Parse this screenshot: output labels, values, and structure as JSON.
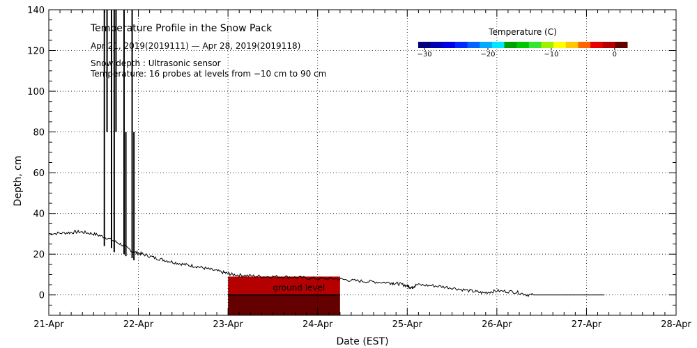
{
  "chart_data": {
    "type": "line",
    "title": "Temperature Profile in the Snow Pack",
    "date_range_text": "Apr 21, 2019(2019111) — Apr 28, 2019(2019118)",
    "info_line_1": "Snow depth : Ultrasonic sensor",
    "info_line_2": "Temperature: 16 probes at levels from −10 cm to 90 cm",
    "xlabel": "Date (EST)",
    "ylabel": "Depth, cm",
    "x_ticks": [
      "21-Apr",
      "22-Apr",
      "23-Apr",
      "24-Apr",
      "25-Apr",
      "26-Apr",
      "27-Apr",
      "28-Apr"
    ],
    "y_ticks": [
      "0",
      "20",
      "40",
      "60",
      "80",
      "100",
      "120",
      "140"
    ],
    "xlim_days": [
      0,
      7
    ],
    "ylim": [
      -10,
      140
    ],
    "grid": true,
    "ground_level_label": "ground level",
    "colorbar": {
      "title": "Temperature (C)",
      "tick_labels": [
        "−30",
        "−20",
        "−10",
        "0"
      ],
      "tick_values": [
        -30,
        -20,
        -10,
        0
      ],
      "range": [
        -31,
        2
      ],
      "colors": [
        "#000080",
        "#0000b4",
        "#0000e6",
        "#0028ff",
        "#0064ff",
        "#00aaff",
        "#00e6ff",
        "#00a000",
        "#00c800",
        "#32e632",
        "#a0f000",
        "#ffff00",
        "#ffc800",
        "#ff6400",
        "#e60000",
        "#b40000",
        "#640000"
      ]
    },
    "series": [
      {
        "values": [
          [
            0.0,
            30
          ],
          [
            0.2,
            30.5
          ],
          [
            0.35,
            31
          ],
          [
            0.5,
            30
          ],
          [
            0.65,
            28
          ],
          [
            0.8,
            25
          ],
          [
            0.95,
            21
          ],
          [
            1.05,
            20
          ],
          [
            1.2,
            18
          ],
          [
            1.35,
            16.5
          ],
          [
            1.5,
            15
          ],
          [
            1.65,
            14
          ],
          [
            1.8,
            12.5
          ],
          [
            1.95,
            11
          ],
          [
            2.05,
            10
          ],
          [
            2.2,
            9.5
          ],
          [
            2.4,
            9
          ],
          [
            2.6,
            9
          ],
          [
            2.8,
            8.5
          ],
          [
            3.0,
            8
          ],
          [
            3.2,
            8
          ],
          [
            3.4,
            7
          ],
          [
            3.6,
            6.5
          ],
          [
            3.8,
            6
          ],
          [
            3.9,
            5.5
          ],
          [
            4.0,
            4.5
          ],
          [
            4.05,
            3.5
          ],
          [
            4.1,
            5
          ],
          [
            4.3,
            4.5
          ],
          [
            4.5,
            3.5
          ],
          [
            4.7,
            2
          ],
          [
            4.85,
            1
          ],
          [
            5.0,
            2
          ],
          [
            5.2,
            1.5
          ],
          [
            5.35,
            0
          ],
          [
            5.5,
            0
          ],
          [
            6.0,
            0
          ],
          [
            6.2,
            0
          ]
        ]
      }
    ],
    "spikes": [
      {
        "x": 0.62,
        "top": 140,
        "bottom": 24
      },
      {
        "x": 0.65,
        "top": 140,
        "bottom": 80
      },
      {
        "x": 0.7,
        "top": 140,
        "bottom": 23
      },
      {
        "x": 0.73,
        "top": 140,
        "bottom": 21
      },
      {
        "x": 0.75,
        "top": 140,
        "bottom": 80
      },
      {
        "x": 0.84,
        "top": 140,
        "bottom": 20
      },
      {
        "x": 0.86,
        "top": 80,
        "bottom": 19
      },
      {
        "x": 0.93,
        "top": 140,
        "bottom": 18
      },
      {
        "x": 0.95,
        "top": 80,
        "bottom": 17
      }
    ],
    "temperature_cells": [
      {
        "x0": 2.0,
        "x1": 3.25,
        "y0": 0,
        "y1": 9,
        "temp": -1
      },
      {
        "x0": 2.0,
        "x1": 3.25,
        "y0": -10,
        "y1": 0,
        "temp": 1
      }
    ]
  }
}
